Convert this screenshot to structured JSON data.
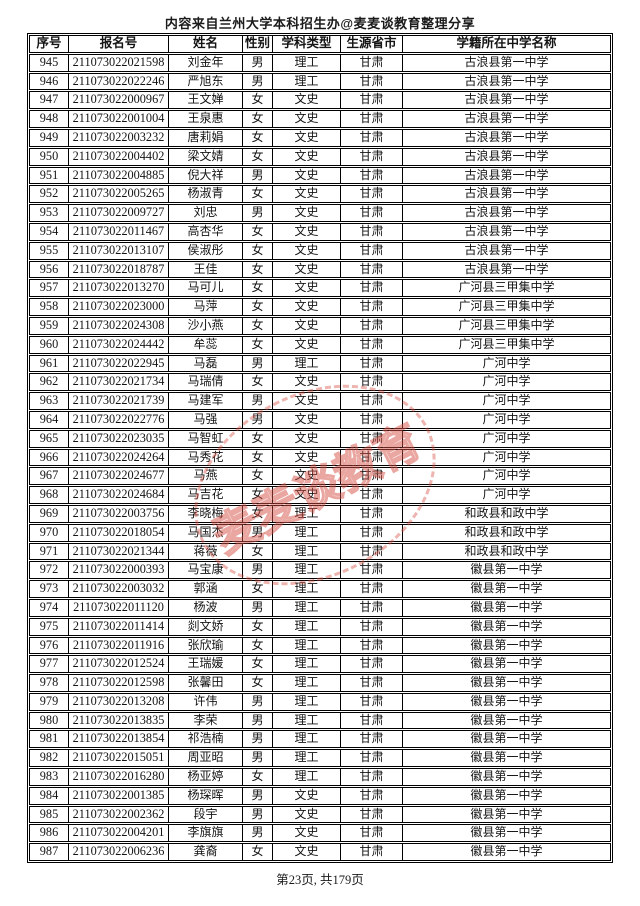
{
  "header": {
    "title": "内容来自兰州大学本科招生办@麦麦谈教育整理分享"
  },
  "table": {
    "columns": [
      "序号",
      "报名号",
      "姓名",
      "性别",
      "学科类型",
      "生源省市",
      "学籍所在中学名称"
    ],
    "rows": [
      [
        "945",
        "211073022021598",
        "刘金年",
        "男",
        "理工",
        "甘肃",
        "古浪县第一中学"
      ],
      [
        "946",
        "211073022022246",
        "严旭东",
        "男",
        "理工",
        "甘肃",
        "古浪县第一中学"
      ],
      [
        "947",
        "211073022000967",
        "王文婵",
        "女",
        "文史",
        "甘肃",
        "古浪县第一中学"
      ],
      [
        "948",
        "211073022001004",
        "王泉惠",
        "女",
        "文史",
        "甘肃",
        "古浪县第一中学"
      ],
      [
        "949",
        "211073022003232",
        "唐莉娟",
        "女",
        "文史",
        "甘肃",
        "古浪县第一中学"
      ],
      [
        "950",
        "211073022004402",
        "梁文婧",
        "女",
        "文史",
        "甘肃",
        "古浪县第一中学"
      ],
      [
        "951",
        "211073022004885",
        "倪大祥",
        "男",
        "文史",
        "甘肃",
        "古浪县第一中学"
      ],
      [
        "952",
        "211073022005265",
        "杨淑青",
        "女",
        "文史",
        "甘肃",
        "古浪县第一中学"
      ],
      [
        "953",
        "211073022009727",
        "刘忠",
        "男",
        "文史",
        "甘肃",
        "古浪县第一中学"
      ],
      [
        "954",
        "211073022011467",
        "高杏华",
        "女",
        "文史",
        "甘肃",
        "古浪县第一中学"
      ],
      [
        "955",
        "211073022013107",
        "侯淑彤",
        "女",
        "文史",
        "甘肃",
        "古浪县第一中学"
      ],
      [
        "956",
        "211073022018787",
        "王佳",
        "女",
        "文史",
        "甘肃",
        "古浪县第一中学"
      ],
      [
        "957",
        "211073022013270",
        "马可儿",
        "女",
        "文史",
        "甘肃",
        "广河县三甲集中学"
      ],
      [
        "958",
        "211073022023000",
        "马萍",
        "女",
        "文史",
        "甘肃",
        "广河县三甲集中学"
      ],
      [
        "959",
        "211073022024308",
        "沙小燕",
        "女",
        "文史",
        "甘肃",
        "广河县三甲集中学"
      ],
      [
        "960",
        "211073022024442",
        "牟蕊",
        "女",
        "文史",
        "甘肃",
        "广河县三甲集中学"
      ],
      [
        "961",
        "211073022022945",
        "马磊",
        "男",
        "理工",
        "甘肃",
        "广河中学"
      ],
      [
        "962",
        "211073022021734",
        "马瑞倩",
        "女",
        "文史",
        "甘肃",
        "广河中学"
      ],
      [
        "963",
        "211073022021739",
        "马建军",
        "男",
        "文史",
        "甘肃",
        "广河中学"
      ],
      [
        "964",
        "211073022022776",
        "马强",
        "男",
        "文史",
        "甘肃",
        "广河中学"
      ],
      [
        "965",
        "211073022023035",
        "马智虹",
        "女",
        "文史",
        "甘肃",
        "广河中学"
      ],
      [
        "966",
        "211073022024264",
        "马秀花",
        "女",
        "文史",
        "甘肃",
        "广河中学"
      ],
      [
        "967",
        "211073022024677",
        "马燕",
        "女",
        "文史",
        "甘肃",
        "广河中学"
      ],
      [
        "968",
        "211073022024684",
        "马吉花",
        "女",
        "文史",
        "甘肃",
        "广河中学"
      ],
      [
        "969",
        "211073022003756",
        "李晓梅",
        "女",
        "理工",
        "甘肃",
        "和政县和政中学"
      ],
      [
        "970",
        "211073022018054",
        "马国杰",
        "男",
        "理工",
        "甘肃",
        "和政县和政中学"
      ],
      [
        "971",
        "211073022021344",
        "蒋薇",
        "女",
        "理工",
        "甘肃",
        "和政县和政中学"
      ],
      [
        "972",
        "211073022000393",
        "马宝康",
        "男",
        "理工",
        "甘肃",
        "徽县第一中学"
      ],
      [
        "973",
        "211073022003032",
        "郭涵",
        "女",
        "理工",
        "甘肃",
        "徽县第一中学"
      ],
      [
        "974",
        "211073022011120",
        "杨波",
        "男",
        "理工",
        "甘肃",
        "徽县第一中学"
      ],
      [
        "975",
        "211073022011414",
        "剡文娇",
        "女",
        "理工",
        "甘肃",
        "徽县第一中学"
      ],
      [
        "976",
        "211073022011916",
        "张欣瑜",
        "女",
        "理工",
        "甘肃",
        "徽县第一中学"
      ],
      [
        "977",
        "211073022012524",
        "王瑞媛",
        "女",
        "理工",
        "甘肃",
        "徽县第一中学"
      ],
      [
        "978",
        "211073022012598",
        "张馨田",
        "女",
        "理工",
        "甘肃",
        "徽县第一中学"
      ],
      [
        "979",
        "211073022013208",
        "许伟",
        "男",
        "理工",
        "甘肃",
        "徽县第一中学"
      ],
      [
        "980",
        "211073022013835",
        "李荣",
        "男",
        "理工",
        "甘肃",
        "徽县第一中学"
      ],
      [
        "981",
        "211073022013854",
        "祁浩楠",
        "男",
        "理工",
        "甘肃",
        "徽县第一中学"
      ],
      [
        "982",
        "211073022015051",
        "周亚昭",
        "男",
        "理工",
        "甘肃",
        "徽县第一中学"
      ],
      [
        "983",
        "211073022016280",
        "杨亚婷",
        "女",
        "理工",
        "甘肃",
        "徽县第一中学"
      ],
      [
        "984",
        "211073022001385",
        "杨琛晖",
        "男",
        "文史",
        "甘肃",
        "徽县第一中学"
      ],
      [
        "985",
        "211073022002362",
        "段宇",
        "男",
        "文史",
        "甘肃",
        "徽县第一中学"
      ],
      [
        "986",
        "211073022004201",
        "李旗旗",
        "男",
        "文史",
        "甘肃",
        "徽县第一中学"
      ],
      [
        "987",
        "211073022006236",
        "龚裔",
        "女",
        "文史",
        "甘肃",
        "徽县第一中学"
      ]
    ]
  },
  "watermark": {
    "text": "麦麦谈教育",
    "color": "#d64d42"
  },
  "footer": {
    "page_label": "第23页, 共179页"
  }
}
